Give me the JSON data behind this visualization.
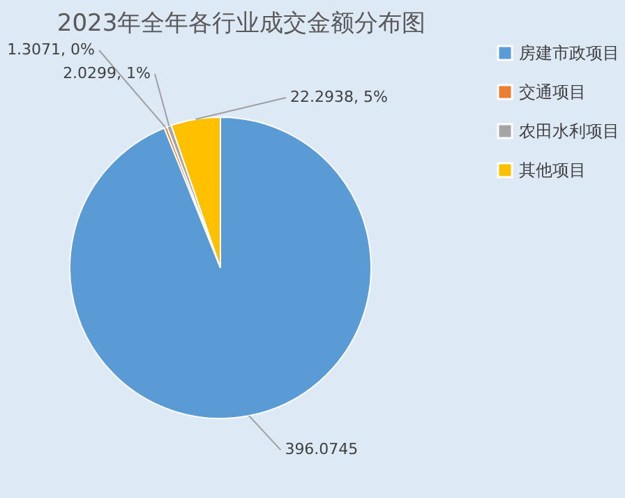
{
  "chart_data": {
    "type": "pie",
    "title": "2023年全年各行业成交金额分布图",
    "categories": [
      "房建市政项目",
      "交通项目",
      "农田水利项目",
      "其他项目"
    ],
    "values": [
      396.0745,
      1.3071,
      2.0299,
      22.2938
    ],
    "colors": [
      "#5b9bd5",
      "#ed7d31",
      "#a5a5a5",
      "#ffc000"
    ],
    "value_labels": [
      "396.0745",
      "1.3071, 0%",
      "2.0299, 1%",
      "22.2938, 5%"
    ],
    "legend": "top right"
  }
}
